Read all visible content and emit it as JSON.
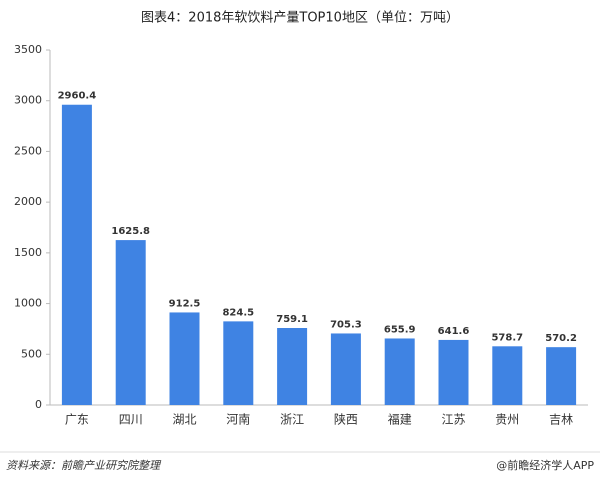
{
  "chart_data": {
    "type": "bar",
    "title": "图表4：2018年软饮料产量TOP10地区（单位：万吨）",
    "categories": [
      "广东",
      "四川",
      "湖北",
      "河南",
      "浙江",
      "陕西",
      "福建",
      "江苏",
      "贵州",
      "吉林"
    ],
    "values": [
      2960.4,
      1625.8,
      912.5,
      824.5,
      759.1,
      705.3,
      655.9,
      641.6,
      578.7,
      570.2
    ],
    "color": "#3f83e3",
    "ylim": [
      0,
      3500
    ],
    "yticks": [
      0,
      500,
      1000,
      1500,
      2000,
      2500,
      3000,
      3500
    ],
    "grid": false,
    "source": "资料来源：前瞻产业研究院整理",
    "credit": "@前瞻经济学人APP"
  }
}
